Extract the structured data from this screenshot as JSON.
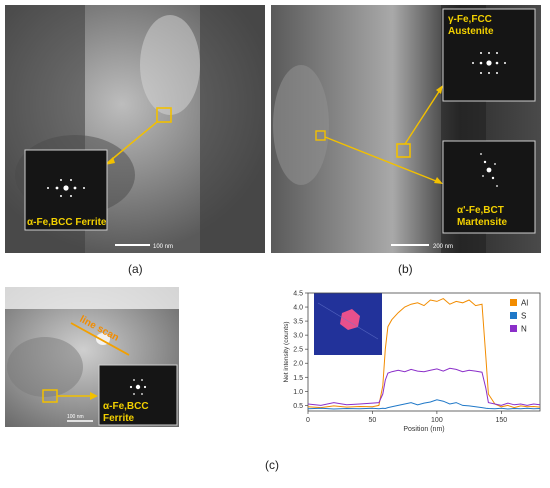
{
  "figure": {
    "panel_a": {
      "label": "(a)",
      "inset_caption": "α-Fe,BCC Ferrite",
      "scalebar": "100 nm"
    },
    "panel_b": {
      "label": "(b)",
      "inset_top_line1": "γ-Fe,FCC",
      "inset_top_line2": "Austenite",
      "inset_bottom_line1": "α'-Fe,BCT",
      "inset_bottom_line2": "Martensite",
      "scalebar": "200 nm"
    },
    "panel_c": {
      "label": "(c)",
      "line_scan_text": "line scan",
      "inset_line1": "α-Fe,BCC",
      "inset_line2": "Ferrite",
      "scalebar": "100 nm"
    },
    "colors": {
      "annotation": "#f2c000",
      "al": "#f28c00",
      "s": "#1f78c8",
      "n": "#8b2fc9"
    }
  },
  "chart_data": {
    "type": "line",
    "title": "",
    "xlabel": "Position (nm)",
    "ylabel": "Net intensity (counts)",
    "xlim": [
      0,
      180
    ],
    "ylim": [
      0.3,
      4.5
    ],
    "xticks": [
      "0",
      "50",
      "100",
      "150"
    ],
    "yticks": [
      "0.5",
      "1.0",
      "1.5",
      "2.0",
      "2.5",
      "3.0",
      "3.5",
      "4.0",
      "4.5"
    ],
    "legend_position": "top-right",
    "x": [
      0,
      10,
      20,
      30,
      40,
      50,
      55,
      58,
      60,
      62,
      65,
      70,
      75,
      80,
      85,
      90,
      95,
      100,
      105,
      110,
      115,
      120,
      125,
      130,
      135,
      138,
      140,
      145,
      150,
      155,
      160,
      165,
      170,
      175,
      180
    ],
    "series": [
      {
        "name": "Al",
        "color": "#f28c00",
        "values": [
          0.45,
          0.42,
          0.48,
          0.44,
          0.46,
          0.45,
          0.5,
          1.2,
          2.5,
          3.3,
          3.55,
          3.8,
          4.0,
          4.1,
          4.15,
          4.05,
          4.25,
          4.2,
          4.3,
          4.1,
          4.2,
          4.15,
          4.25,
          4.05,
          4.1,
          2.2,
          0.9,
          0.55,
          0.45,
          0.5,
          0.42,
          0.48,
          0.45,
          0.46,
          0.44
        ]
      },
      {
        "name": "S",
        "color": "#1f78c8",
        "values": [
          0.38,
          0.4,
          0.37,
          0.39,
          0.38,
          0.4,
          0.38,
          0.4,
          0.39,
          0.42,
          0.45,
          0.5,
          0.55,
          0.6,
          0.52,
          0.58,
          0.62,
          0.7,
          0.65,
          0.55,
          0.6,
          0.5,
          0.48,
          0.45,
          0.42,
          0.4,
          0.39,
          0.38,
          0.4,
          0.37,
          0.39,
          0.38,
          0.4,
          0.38,
          0.39
        ]
      },
      {
        "name": "N",
        "color": "#8b2fc9",
        "values": [
          0.55,
          0.5,
          0.6,
          0.52,
          0.55,
          0.58,
          0.6,
          0.9,
          1.4,
          1.65,
          1.7,
          1.75,
          1.7,
          1.78,
          1.72,
          1.7,
          1.75,
          1.8,
          1.72,
          1.82,
          1.78,
          1.7,
          1.75,
          1.72,
          1.68,
          1.1,
          0.6,
          0.55,
          0.5,
          0.58,
          0.52,
          0.55,
          0.5,
          0.55,
          0.52
        ]
      }
    ]
  }
}
